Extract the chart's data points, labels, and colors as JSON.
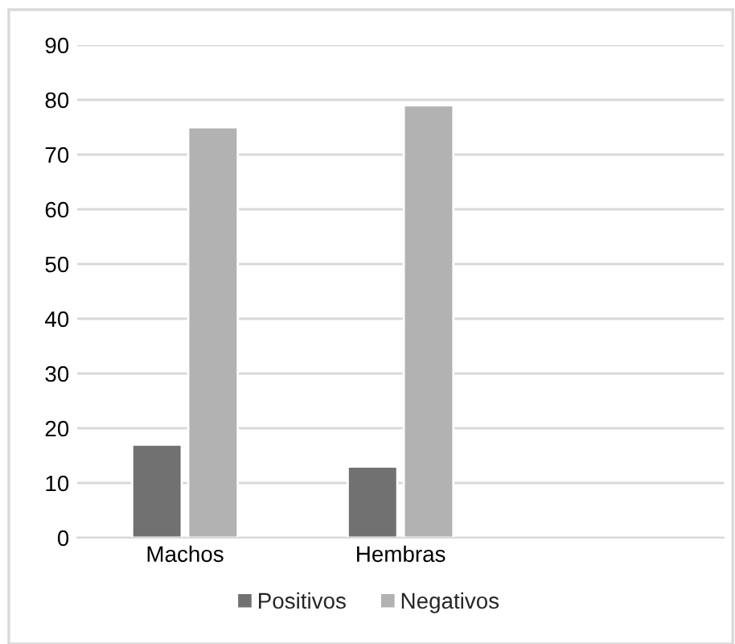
{
  "chart_data": {
    "type": "bar",
    "categories": [
      "Machos",
      "Hembras",
      null
    ],
    "series": [
      {
        "name": "Positivos",
        "color": "#717171",
        "values": [
          17,
          13,
          null
        ]
      },
      {
        "name": "Negativos",
        "color": "#b2b2b2",
        "values": [
          75,
          79,
          null
        ]
      }
    ],
    "ylim": [
      0,
      90
    ],
    "yticks": [
      0,
      10,
      20,
      30,
      40,
      50,
      60,
      70,
      80,
      90
    ],
    "grid": "y",
    "legend": "bottom"
  }
}
